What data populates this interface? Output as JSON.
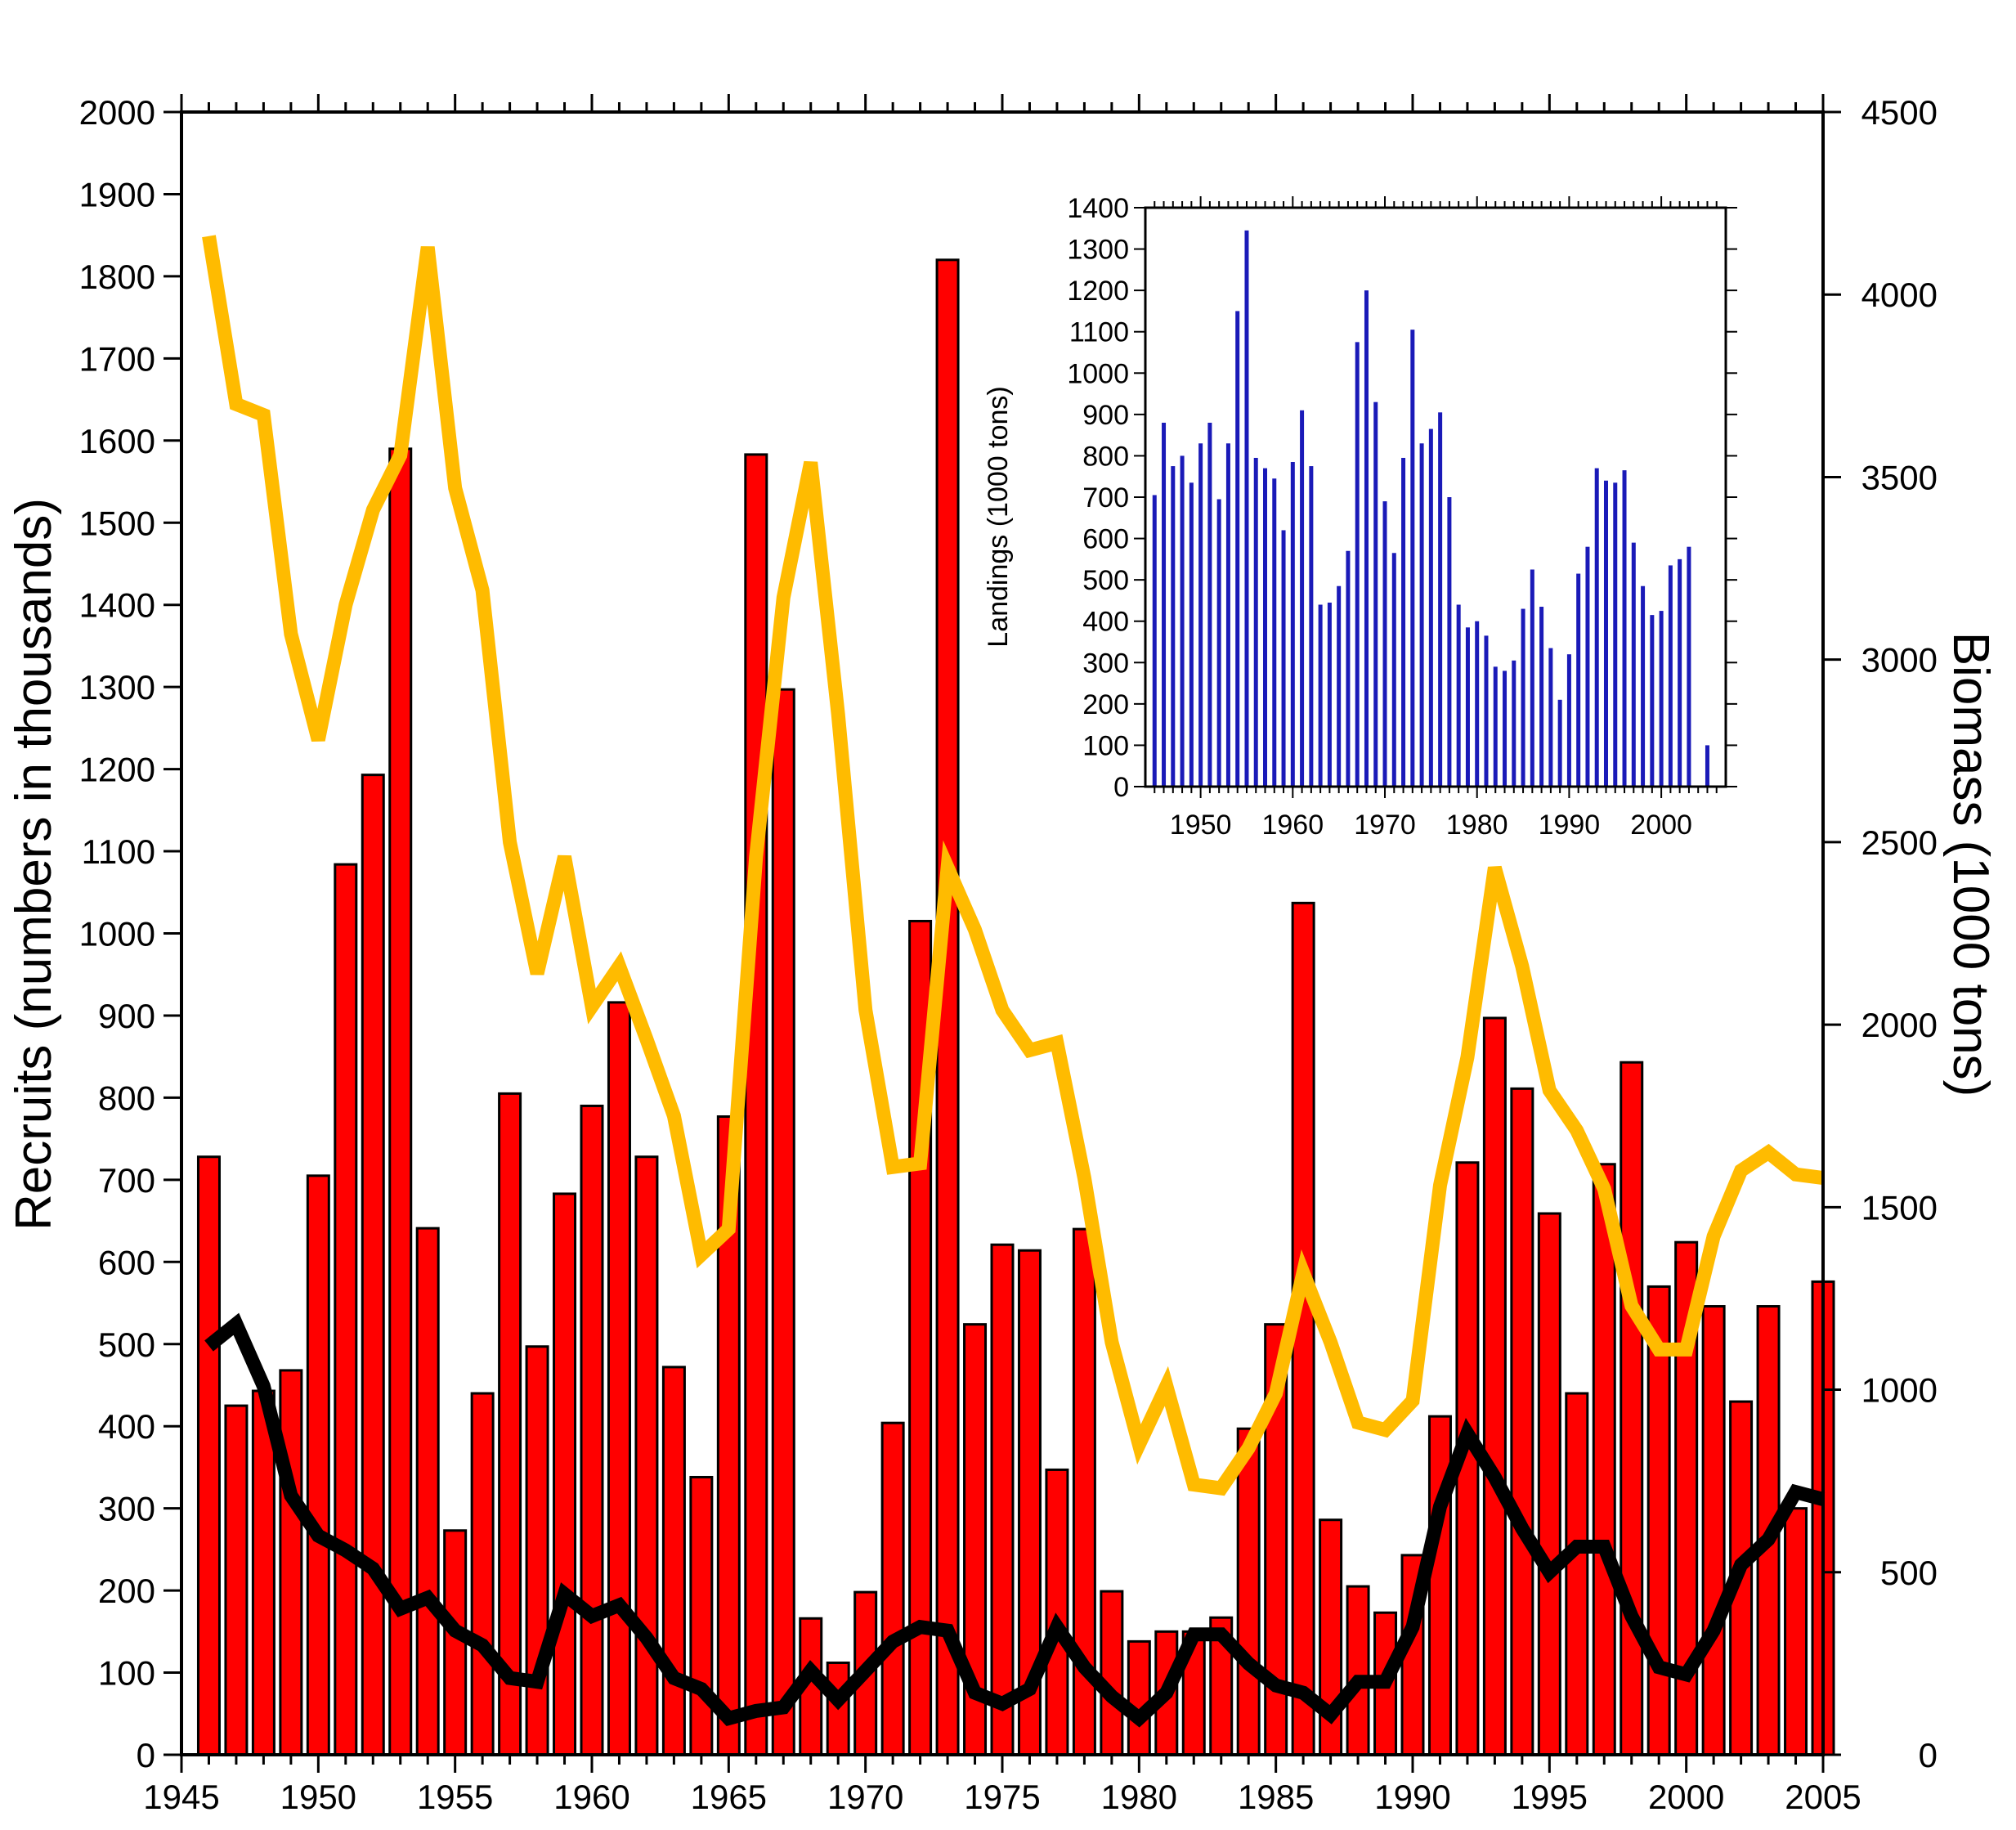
{
  "chart_data": [
    {
      "type": "bar",
      "x": [
        1946,
        1947,
        1948,
        1949,
        1950,
        1951,
        1952,
        1953,
        1954,
        1955,
        1956,
        1957,
        1958,
        1959,
        1960,
        1961,
        1962,
        1963,
        1964,
        1965,
        1966,
        1967,
        1968,
        1969,
        1970,
        1971,
        1972,
        1973,
        1974,
        1975,
        1976,
        1977,
        1978,
        1979,
        1980,
        1981,
        1982,
        1983,
        1984,
        1985,
        1986,
        1987,
        1988,
        1989,
        1990,
        1991,
        1992,
        1993,
        1994,
        1995,
        1996,
        1997,
        1998,
        1999,
        2000,
        2001,
        2002,
        2003,
        2004,
        2005
      ],
      "series": [
        {
          "type": "bar",
          "axis": "left",
          "color": "#ff0000",
          "values": [
            728,
            425,
            443,
            468,
            705,
            1084,
            1193,
            1590,
            641,
            273,
            440,
            805,
            497,
            683,
            790,
            916,
            728,
            472,
            338,
            777,
            1583,
            1297,
            166,
            112,
            198,
            404,
            1015,
            1820,
            524,
            621,
            614,
            347,
            640,
            199,
            138,
            150,
            150,
            167,
            397,
            524,
            1037,
            286,
            205,
            173,
            243,
            412,
            721,
            897,
            811,
            659,
            440,
            719,
            843,
            570,
            624,
            546,
            430,
            546,
            300,
            576
          ]
        },
        {
          "type": "line",
          "axis": "right",
          "color": "#ffbb00",
          "values": [
            4160,
            3700,
            3670,
            3070,
            2780,
            3150,
            3410,
            3560,
            4130,
            3470,
            3190,
            2500,
            2140,
            2460,
            2050,
            2160,
            1960,
            1750,
            1370,
            1440,
            2460,
            3170,
            3540,
            2850,
            2040,
            1610,
            1620,
            2430,
            2260,
            2040,
            1930,
            1950,
            1580,
            1130,
            850,
            1010,
            740,
            730,
            840,
            990,
            1320,
            1130,
            910,
            890,
            970,
            1560,
            1910,
            2430,
            2160,
            1820,
            1710,
            1550,
            1230,
            1110,
            1110,
            1420,
            1600,
            1650,
            1590,
            1580
          ]
        },
        {
          "type": "line",
          "axis": "right",
          "color": "#000000",
          "values": [
            1120,
            1180,
            1010,
            710,
            600,
            560,
            510,
            400,
            430,
            340,
            300,
            210,
            200,
            440,
            380,
            410,
            320,
            210,
            180,
            100,
            120,
            130,
            230,
            150,
            230,
            310,
            350,
            340,
            170,
            140,
            180,
            350,
            240,
            160,
            100,
            170,
            330,
            330,
            250,
            190,
            170,
            110,
            200,
            200,
            350,
            680,
            880,
            760,
            620,
            500,
            570,
            570,
            380,
            240,
            220,
            340,
            520,
            590,
            720,
            700
          ]
        }
      ],
      "xlim": [
        1945,
        2005
      ],
      "ylim": [
        0,
        2000
      ],
      "ylim_right": [
        0,
        4500
      ],
      "x_ticks": [
        "1945",
        "1950",
        "1955",
        "1960",
        "1965",
        "1970",
        "1975",
        "1980",
        "1985",
        "1990",
        "1995",
        "2000",
        "2005"
      ],
      "y_ticks": [
        "0",
        "100",
        "200",
        "300",
        "400",
        "500",
        "600",
        "700",
        "800",
        "900",
        "1000",
        "1100",
        "1200",
        "1300",
        "1400",
        "1500",
        "1600",
        "1700",
        "1800",
        "1900",
        "2000"
      ],
      "y_right_ticks": [
        "0",
        "500",
        "1000",
        "1500",
        "2000",
        "2500",
        "3000",
        "3500",
        "4000",
        "4500"
      ],
      "ylabel": "Recruits (numbers in thousands)",
      "ylabel_right": "Biomass (1000 tons)",
      "xlabel": ""
    },
    {
      "type": "bar",
      "position": "inset top-right",
      "x": [
        1945,
        1946,
        1947,
        1948,
        1949,
        1950,
        1951,
        1952,
        1953,
        1954,
        1955,
        1956,
        1957,
        1958,
        1959,
        1960,
        1961,
        1962,
        1963,
        1964,
        1965,
        1966,
        1967,
        1968,
        1969,
        1970,
        1971,
        1972,
        1973,
        1974,
        1975,
        1976,
        1977,
        1978,
        1979,
        1980,
        1981,
        1982,
        1983,
        1984,
        1985,
        1986,
        1987,
        1988,
        1989,
        1990,
        1991,
        1992,
        1993,
        1994,
        1995,
        1996,
        1997,
        1998,
        1999,
        2000,
        2001,
        2002,
        2003,
        2004,
        2005
      ],
      "values": [
        705,
        880,
        775,
        800,
        735,
        830,
        880,
        695,
        830,
        1150,
        1345,
        795,
        770,
        745,
        620,
        785,
        910,
        775,
        440,
        445,
        485,
        570,
        1075,
        1200,
        930,
        690,
        565,
        795,
        1105,
        830,
        865,
        905,
        700,
        440,
        385,
        400,
        365,
        290,
        280,
        305,
        430,
        525,
        435,
        335,
        210,
        320,
        515,
        580,
        770,
        740,
        735,
        765,
        590,
        485,
        415,
        425,
        535,
        550,
        580,
        0,
        100
      ],
      "color": "#1a1ab8",
      "xlim": [
        1944,
        2007
      ],
      "ylim": [
        0,
        1400
      ],
      "x_ticks": [
        "1950",
        "1960",
        "1970",
        "1980",
        "1990",
        "2000"
      ],
      "y_ticks": [
        "0",
        "100",
        "200",
        "300",
        "400",
        "500",
        "600",
        "700",
        "800",
        "900",
        "1000",
        "1100",
        "1200",
        "1300",
        "1400"
      ],
      "ylabel": "Landings (1000 tons)",
      "xlabel": ""
    }
  ]
}
